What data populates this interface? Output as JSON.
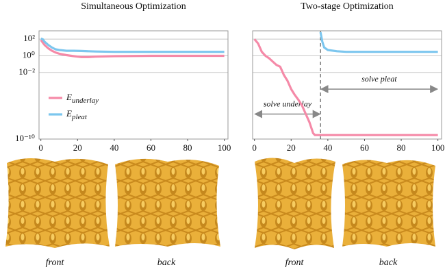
{
  "chart_data": [
    {
      "type": "line",
      "title": "Simultaneous Optimization",
      "log_y": true,
      "grid": true,
      "legend": "center-left",
      "x": [
        0,
        1,
        2,
        4,
        6,
        8,
        10,
        14,
        18,
        22,
        26,
        30,
        40,
        60,
        80,
        100
      ],
      "series": [
        {
          "name": "E",
          "subscript": "underlay",
          "color": "#f58aa8",
          "values": [
            80,
            40,
            20,
            8,
            4,
            2.5,
            1.8,
            1.2,
            0.9,
            0.7,
            0.7,
            0.8,
            0.9,
            1,
            1,
            1
          ]
        },
        {
          "name": "E",
          "subscript": "pleat",
          "color": "#7cc6ee",
          "values": [
            120,
            100,
            50,
            20,
            10,
            6,
            5,
            4,
            4,
            3.8,
            3.5,
            3.3,
            3,
            3,
            3,
            3
          ]
        }
      ],
      "xlim": [
        -1,
        102
      ],
      "xticks": [
        0,
        20,
        40,
        60,
        80,
        100
      ],
      "ylim": [
        1e-10,
        1000
      ],
      "yticks": [
        {
          "value": 100,
          "label": "10²"
        },
        {
          "value": 1,
          "label": "10⁰"
        },
        {
          "value": 0.01,
          "label": "10⁻²"
        },
        {
          "value": 1e-10,
          "label": "10⁻¹⁰"
        }
      ]
    },
    {
      "type": "line",
      "title": "Two-stage Optimization",
      "log_y": true,
      "grid": true,
      "x": [
        0,
        2,
        4,
        6,
        8,
        10,
        12,
        14,
        16,
        18,
        20,
        22,
        24,
        26,
        28,
        30,
        32,
        33,
        34,
        36,
        37,
        38,
        40,
        45,
        50,
        60,
        80,
        100
      ],
      "series": [
        {
          "name": "E",
          "subscript": "underlay",
          "color": "#f58aa8",
          "values": [
            100,
            30,
            3,
            1,
            0.5,
            0.2,
            0.08,
            0.05,
            0.005,
            0.001,
            0.0001,
            2e-05,
            5e-06,
            1e-06,
            1e-07,
            1e-08,
            5e-10,
            3e-10,
            3e-10,
            3e-10,
            3e-10,
            3e-10,
            3e-10,
            3e-10,
            3e-10,
            3e-10,
            3e-10,
            3e-10
          ]
        },
        {
          "name": "E",
          "subscript": "pleat",
          "color": "#7cc6ee",
          "values": [
            null,
            null,
            null,
            null,
            null,
            null,
            null,
            null,
            null,
            null,
            null,
            null,
            null,
            null,
            null,
            null,
            null,
            null,
            null,
            700,
            50,
            10,
            5,
            3.5,
            3,
            3,
            3,
            3
          ]
        }
      ],
      "xlim": [
        -1,
        102
      ],
      "xticks": [
        0,
        20,
        40,
        60,
        80,
        100
      ],
      "ylim": [
        1e-10,
        1000
      ],
      "stage_switch": 36,
      "annotations": [
        {
          "text": "solve underlay",
          "from": 0,
          "to": 36,
          "y": 1e-07
        },
        {
          "text": "solve pleat",
          "from": 36,
          "to": 100,
          "y": 0.0001
        }
      ]
    }
  ],
  "renders": [
    {
      "caption": "front"
    },
    {
      "caption": "back"
    },
    {
      "caption": "front"
    },
    {
      "caption": "back"
    }
  ]
}
